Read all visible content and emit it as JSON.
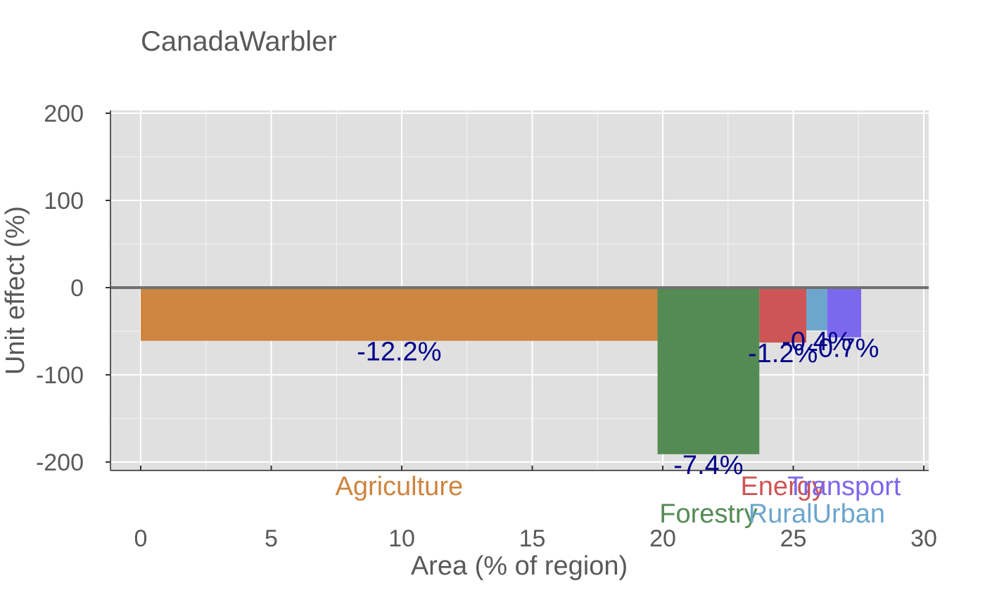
{
  "chart_data": {
    "type": "bar",
    "title": "CanadaWarbler",
    "xlabel": "Area (% of region)",
    "ylabel": "Unit effect (%)",
    "xlim": [
      0,
      30
    ],
    "ylim": [
      -200,
      200
    ],
    "xticks": [
      "0",
      "5",
      "10",
      "15",
      "20",
      "25",
      "30"
    ],
    "yticks": [
      "200",
      "100",
      "0",
      "-100",
      "-200"
    ],
    "grid": true,
    "background_color": "#e0e0e0",
    "zero_line_color": "#707070",
    "value_label_color": "#00008b",
    "bars": [
      {
        "name": "Agriculture",
        "x_start": 0.0,
        "x_end": 19.8,
        "unit_effect": -61,
        "total_effect_label": "-12.2%",
        "color": "#cd853f"
      },
      {
        "name": "Forestry",
        "x_start": 19.8,
        "x_end": 23.7,
        "unit_effect": -191,
        "total_effect_label": "-7.4%",
        "color": "#548b54"
      },
      {
        "name": "Energy",
        "x_start": 23.7,
        "x_end": 25.5,
        "unit_effect": -63,
        "total_effect_label": "-1.2%",
        "color": "#cd5555"
      },
      {
        "name": "RuralUrban",
        "x_start": 25.5,
        "x_end": 26.3,
        "unit_effect": -49,
        "total_effect_label": "-0.4%",
        "color": "#6ca6cd"
      },
      {
        "name": "Transport",
        "x_start": 26.3,
        "x_end": 27.6,
        "unit_effect": -57,
        "total_effect_label": "-0.7%",
        "color": "#7b68ee"
      }
    ]
  }
}
